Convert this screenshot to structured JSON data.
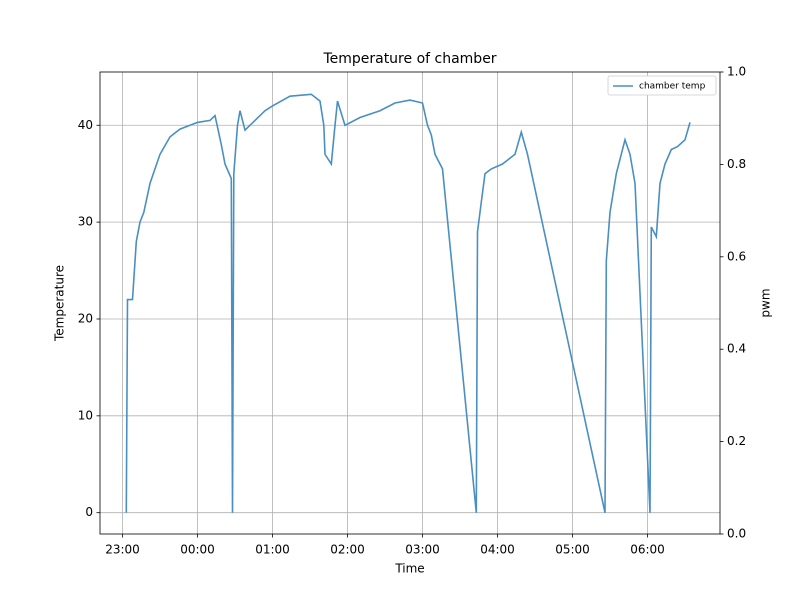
{
  "chart_data": {
    "type": "line",
    "title": "Temperature of chamber",
    "x_label": "Time",
    "y_label": "Temperature",
    "y2_label": "pwm",
    "x": [
      "23:03",
      "23:04",
      "23:08",
      "23:11",
      "23:14",
      "23:17",
      "23:22",
      "23:30",
      "23:38",
      "23:46",
      "00:00",
      "00:10",
      "00:14",
      "00:19",
      "00:22",
      "00:27",
      "00:28",
      "00:29",
      "00:32",
      "00:34",
      "00:38",
      "00:46",
      "00:54",
      "01:00",
      "01:14",
      "01:31",
      "01:38",
      "01:41",
      "01:42",
      "01:47",
      "01:50",
      "01:52",
      "01:58",
      "02:10",
      "02:26",
      "02:38",
      "02:50",
      "03:00",
      "03:04",
      "03:07",
      "03:10",
      "03:16",
      "03:43",
      "03:44",
      "03:47",
      "03:50",
      "03:55",
      "04:04",
      "04:14",
      "04:19",
      "04:24",
      "05:26",
      "05:27",
      "05:30",
      "05:35",
      "05:42",
      "05:46",
      "05:50",
      "06:02",
      "06:03",
      "06:07",
      "06:10",
      "06:14",
      "06:19",
      "06:24",
      "06:30",
      "06:34"
    ],
    "series": [
      {
        "name": "chamber temp",
        "color": "#4a8fc2",
        "values": [
          0,
          22,
          22,
          28,
          30,
          31,
          34,
          37,
          38.8,
          39.6,
          40.3,
          40.5,
          41,
          38,
          36,
          34.5,
          0,
          35,
          40,
          41.5,
          39.5,
          40.5,
          41.5,
          42,
          43,
          43.2,
          42.5,
          40,
          37,
          36,
          40,
          42.5,
          40,
          40.8,
          41.5,
          42.3,
          42.6,
          42.3,
          40,
          39,
          37,
          35.5,
          0,
          29,
          32,
          35,
          35.5,
          36,
          37,
          39.3,
          37,
          0,
          26,
          31,
          35,
          38.5,
          37,
          34,
          0,
          29.5,
          28.5,
          34,
          36,
          37.5,
          37.8,
          38.5,
          40.3
        ]
      }
    ],
    "xlim": [
      "22:42",
      "06:58"
    ],
    "xticks": [
      "23:00",
      "00:00",
      "01:00",
      "02:00",
      "03:00",
      "04:00",
      "05:00",
      "06:00"
    ],
    "ylim": [
      -2.2,
      45.5
    ],
    "yticks": [
      0,
      10,
      20,
      30,
      40
    ],
    "y2lim": [
      0,
      1
    ],
    "y2ticks": [
      {
        "value": 0,
        "label": "0.0"
      },
      {
        "value": 0.2,
        "label": "0.2"
      },
      {
        "value": 0.4,
        "label": "0.4"
      },
      {
        "value": 0.6,
        "label": "0.6"
      },
      {
        "value": 0.8,
        "label": "0.8"
      },
      {
        "value": 1,
        "label": "1.0"
      }
    ],
    "grid": true,
    "legend": "upper right"
  }
}
